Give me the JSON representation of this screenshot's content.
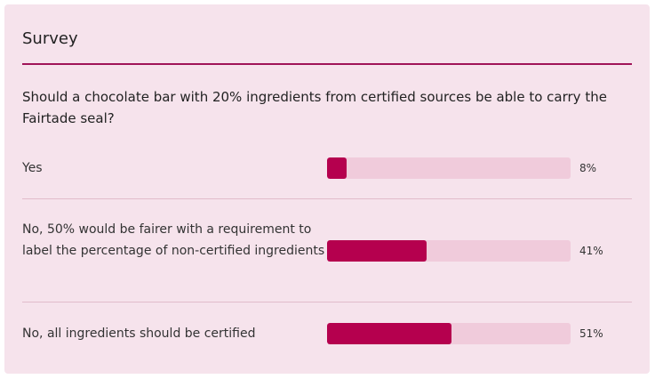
{
  "survey": {
    "title": "Survey",
    "question": "Should a chocolate bar with 20% ingredients from certified sources be able to carry the Fairtade seal?",
    "answers": [
      {
        "label": "Yes",
        "percent_label": "8%",
        "value": 8
      },
      {
        "label": "No, 50% would be fairer with a requirement to label the percentage of non-certified ingredients",
        "percent_label": "41%",
        "value": 41
      },
      {
        "label": "No, all ingredients should be certified",
        "percent_label": "51%",
        "value": 51
      }
    ]
  },
  "colors": {
    "card_background": "#f6e3ec",
    "accent": "#b5004e",
    "track": "#f0cbdb",
    "rule": "#a01458"
  }
}
